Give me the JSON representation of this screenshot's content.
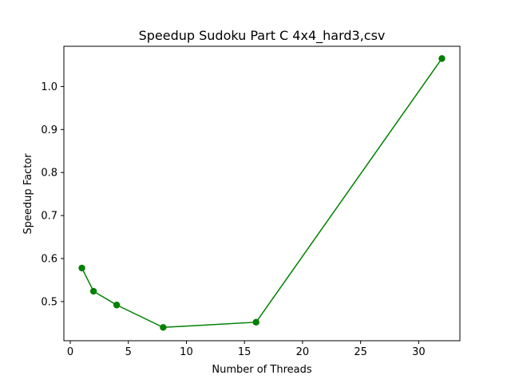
{
  "chart_data": {
    "type": "line",
    "title": "Speedup Sudoku Part C 4x4_hard3,csv",
    "xlabel": "Number of Threads",
    "ylabel": "Speedup Factor",
    "xlim": [
      -0.55,
      33.55
    ],
    "ylim": [
      0.409,
      1.0935
    ],
    "xticks": [
      0,
      5,
      10,
      15,
      20,
      25,
      30
    ],
    "xtick_labels": [
      "0",
      "5",
      "10",
      "15",
      "20",
      "25",
      "30"
    ],
    "yticks": [
      0.5,
      0.6,
      0.7,
      0.8,
      0.9,
      1.0
    ],
    "ytick_labels": [
      "0.5",
      "0.6",
      "0.7",
      "0.8",
      "0.9",
      "1.0"
    ],
    "grid": false,
    "series": [
      {
        "color": "#008000",
        "marker": "circle",
        "x": [
          1,
          2,
          4,
          8,
          16,
          32
        ],
        "y": [
          0.578,
          0.524,
          0.492,
          0.44,
          0.452,
          1.065
        ]
      }
    ]
  }
}
